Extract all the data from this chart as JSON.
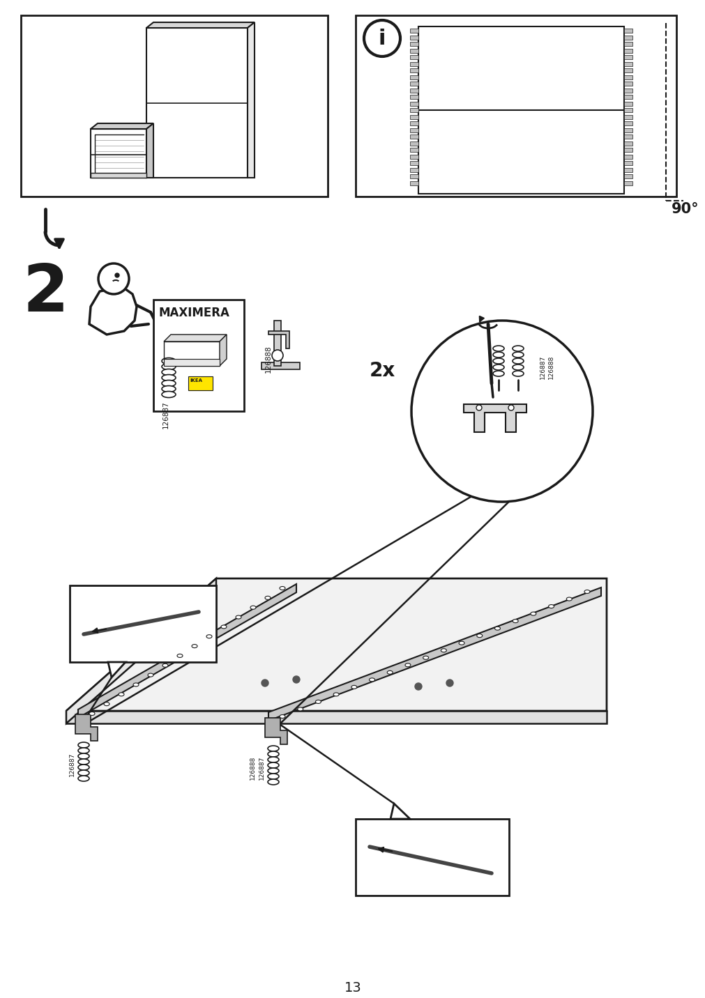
{
  "bg": "#ffffff",
  "lc": "#1a1a1a",
  "page_num": "13",
  "step": "2",
  "maximera": "MAXIMERA",
  "lbl_126887": "126887",
  "lbl_126888": "126888",
  "txt_2x": "2x",
  "txt_90": "90°"
}
